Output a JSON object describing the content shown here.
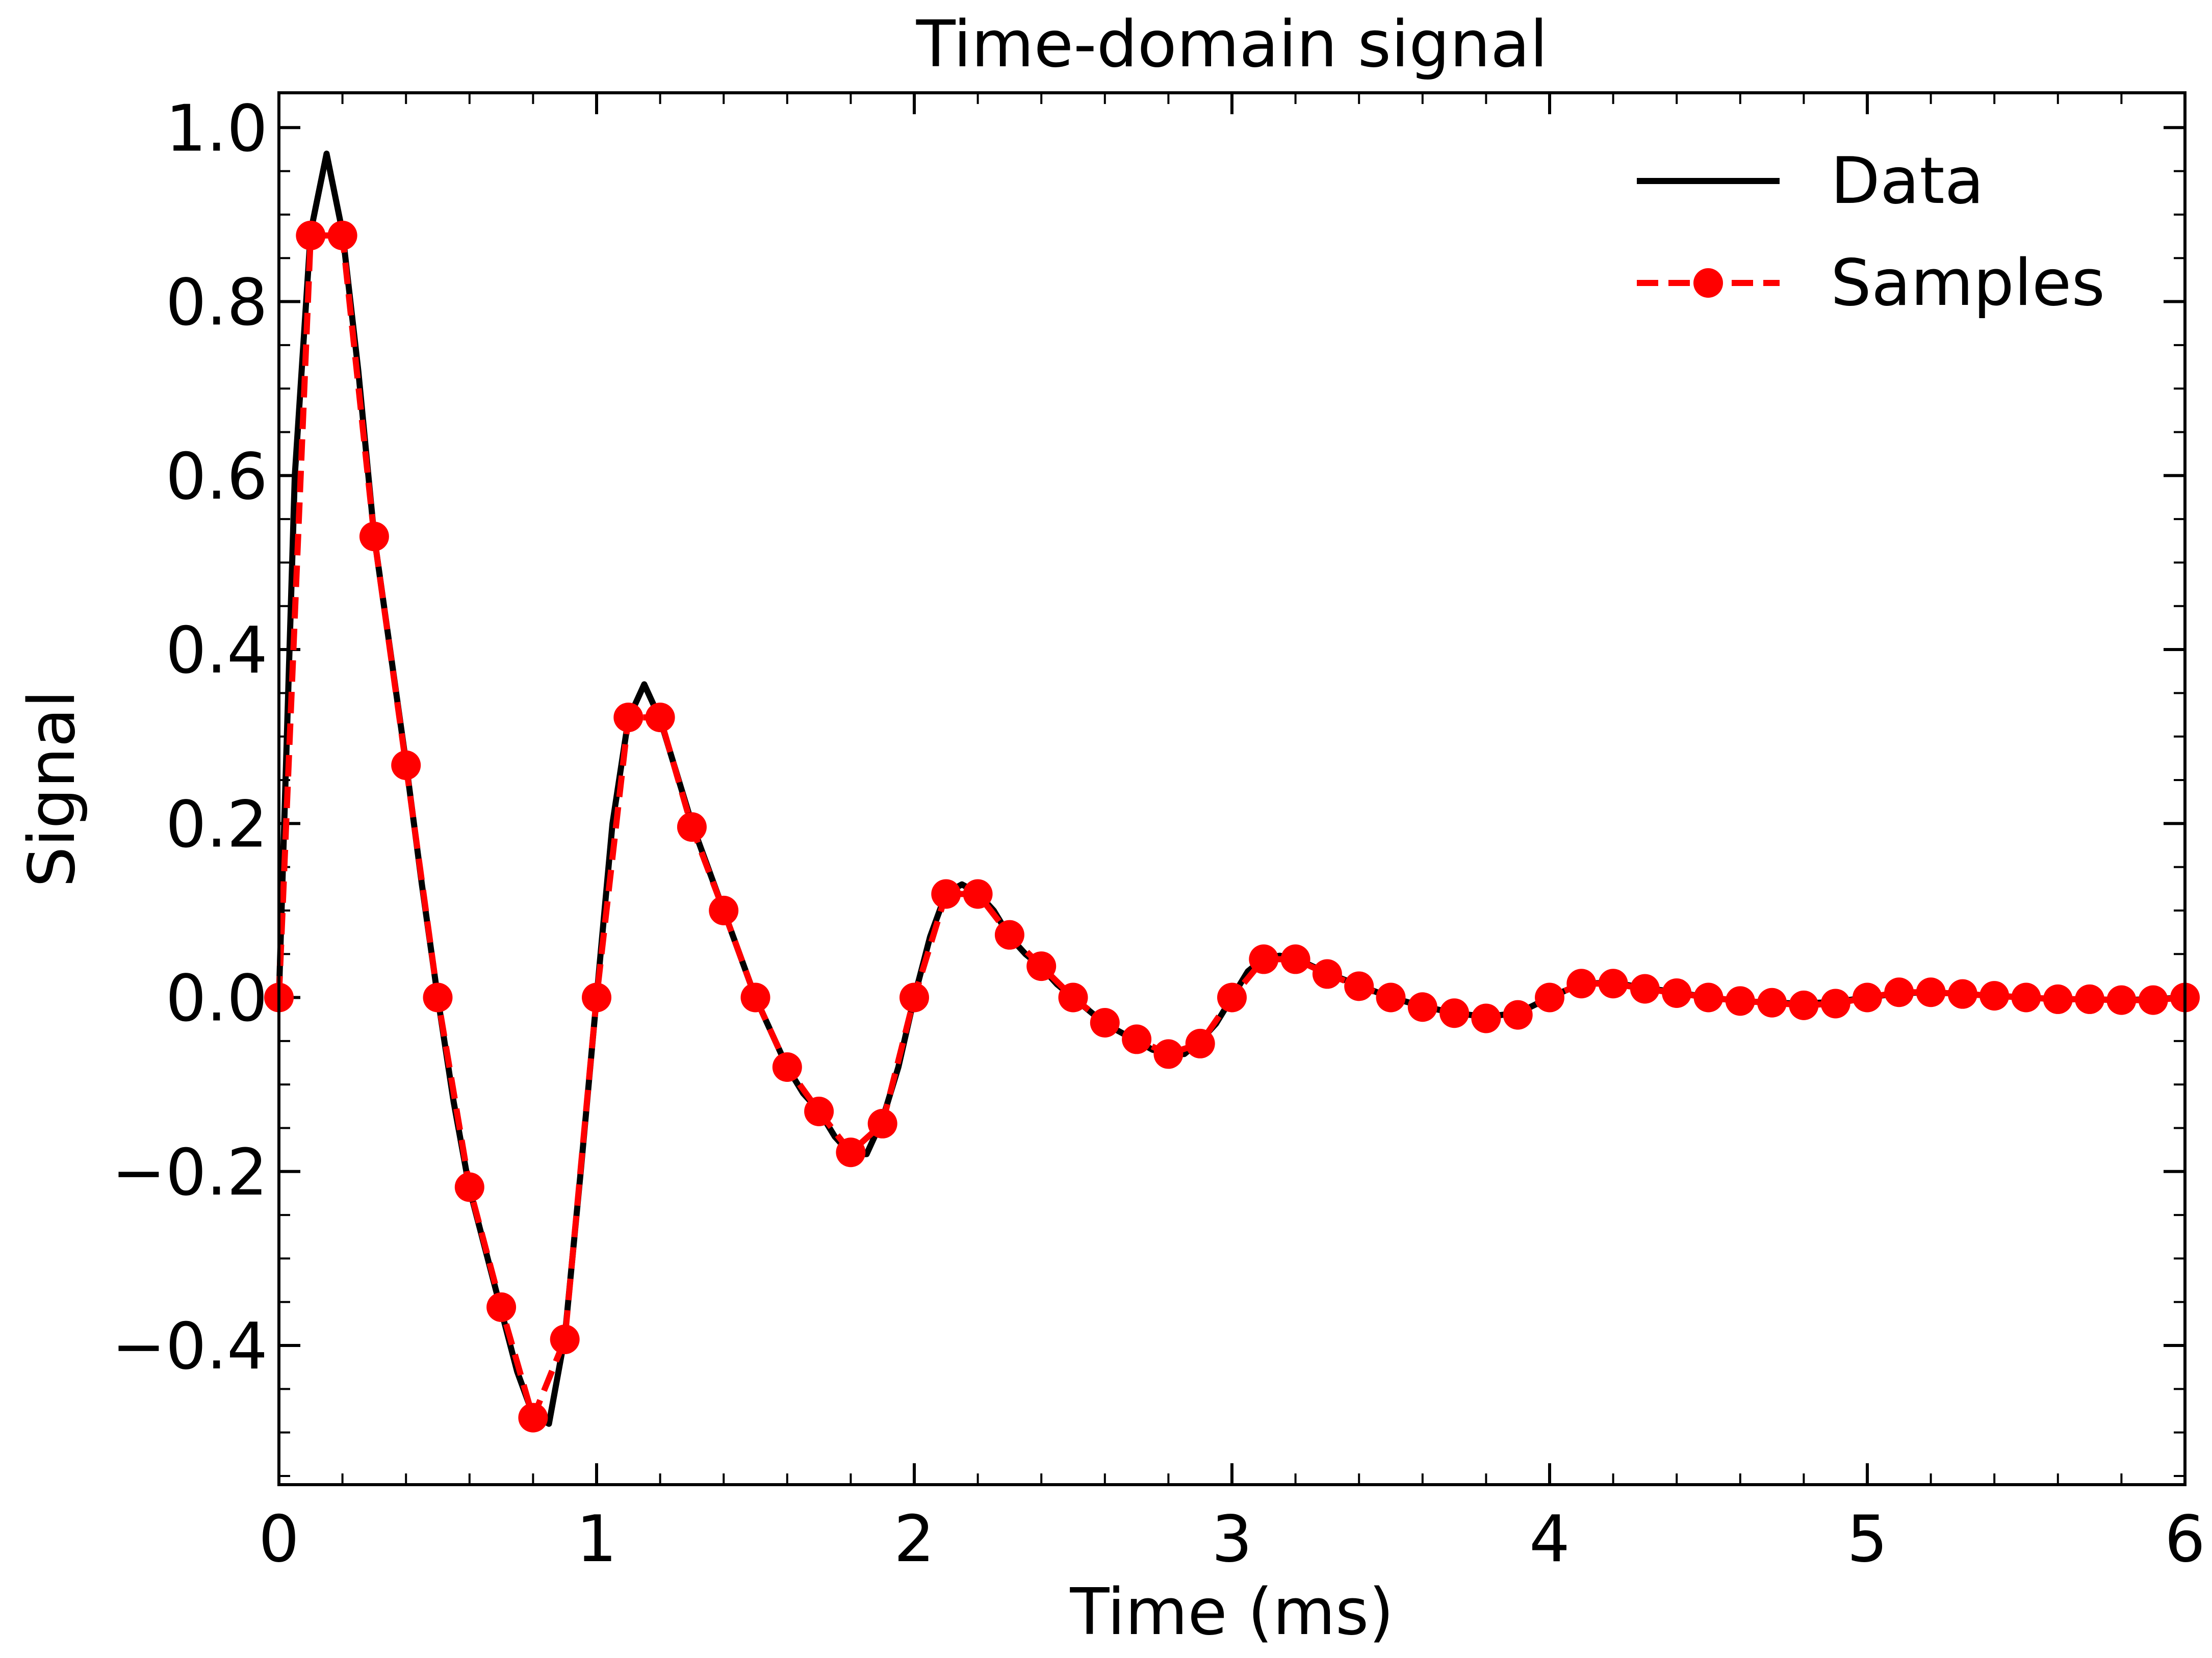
{
  "chart_data": {
    "type": "line",
    "title": "Time-domain signal",
    "xlabel": "Time (ms)",
    "ylabel": "Signal",
    "xlim": [
      0,
      6
    ],
    "ylim": [
      -0.56,
      1.04
    ],
    "xticks": [
      0,
      1,
      2,
      3,
      4,
      5,
      6
    ],
    "xtick_labels": [
      "0",
      "1",
      "2",
      "3",
      "4",
      "5",
      "6"
    ],
    "yticks": [
      -0.4,
      -0.2,
      0.0,
      0.2,
      0.4,
      0.6,
      0.8,
      1.0
    ],
    "ytick_labels": [
      "−0.4",
      "−0.2",
      "0.0",
      "0.2",
      "0.4",
      "0.6",
      "0.8",
      "1.0"
    ],
    "x_minor_step": 0.2,
    "y_minor_step": 0.05,
    "grid": false,
    "legend_position": "top-right",
    "series": [
      {
        "name": "Data",
        "style": "solid",
        "color": "#000000",
        "marker": "none",
        "x": [
          0,
          0.05,
          0.1,
          0.15,
          0.2,
          0.25,
          0.3,
          0.35,
          0.4,
          0.45,
          0.5,
          0.55,
          0.6,
          0.65,
          0.7,
          0.75,
          0.8,
          0.85,
          0.9,
          0.95,
          1.0,
          1.05,
          1.1,
          1.15,
          1.2,
          1.25,
          1.3,
          1.35,
          1.4,
          1.45,
          1.5,
          1.55,
          1.6,
          1.65,
          1.7,
          1.75,
          1.8,
          1.85,
          1.9,
          1.95,
          2.0,
          2.05,
          2.1,
          2.15,
          2.2,
          2.25,
          2.3,
          2.35,
          2.4,
          2.45,
          2.5,
          2.55,
          2.6,
          2.65,
          2.7,
          2.75,
          2.8,
          2.85,
          2.9,
          2.95,
          3.0,
          3.05,
          3.1,
          3.15,
          3.2,
          3.3,
          3.4,
          3.5,
          3.6,
          3.7,
          3.8,
          3.9,
          4.0,
          4.1,
          4.2,
          4.3,
          4.4,
          4.5,
          4.6,
          4.7,
          4.8,
          4.9,
          5.0,
          5.1,
          5.2,
          5.3,
          5.4,
          5.5,
          5.6,
          5.7,
          5.8,
          5.9,
          6.0
        ],
        "y": [
          0.0,
          0.6,
          0.88,
          0.97,
          0.88,
          0.72,
          0.53,
          0.4,
          0.27,
          0.13,
          0.0,
          -0.12,
          -0.22,
          -0.29,
          -0.36,
          -0.43,
          -0.48,
          -0.49,
          -0.39,
          -0.2,
          0.0,
          0.2,
          0.32,
          0.36,
          0.32,
          0.26,
          0.2,
          0.15,
          0.1,
          0.05,
          0.0,
          -0.04,
          -0.08,
          -0.11,
          -0.13,
          -0.16,
          -0.18,
          -0.18,
          -0.14,
          -0.08,
          0.0,
          0.07,
          0.12,
          0.13,
          0.12,
          0.1,
          0.07,
          0.05,
          0.035,
          0.015,
          0.0,
          -0.015,
          -0.03,
          -0.04,
          -0.05,
          -0.06,
          -0.065,
          -0.065,
          -0.05,
          -0.03,
          0.0,
          0.03,
          0.045,
          0.048,
          0.045,
          0.028,
          0.014,
          0.0,
          -0.01,
          -0.018,
          -0.022,
          -0.018,
          0.0,
          0.016,
          0.017,
          0.011,
          0.006,
          0.0,
          -0.004,
          -0.006,
          -0.007,
          -0.005,
          0.0,
          0.005,
          0.006,
          0.004,
          0.002,
          0.0,
          -0.002,
          -0.002,
          -0.003,
          -0.002,
          0.0
        ]
      },
      {
        "name": "Samples",
        "style": "dashed",
        "color": "#ff0000",
        "marker": "circle",
        "x": [
          0.0,
          0.1,
          0.2,
          0.3,
          0.4,
          0.5,
          0.6,
          0.7,
          0.8,
          0.9,
          1.0,
          1.1,
          1.2,
          1.3,
          1.4,
          1.5,
          1.6,
          1.7,
          1.8,
          1.9,
          2.0,
          2.1,
          2.2,
          2.3,
          2.4,
          2.5,
          2.6,
          2.7,
          2.8,
          2.9,
          3.0,
          3.1,
          3.2,
          3.3,
          3.4,
          3.5,
          3.6,
          3.7,
          3.8,
          3.9,
          4.0,
          4.1,
          4.2,
          4.3,
          4.4,
          4.5,
          4.6,
          4.7,
          4.8,
          4.9,
          5.0,
          5.1,
          5.2,
          5.3,
          5.4,
          5.5,
          5.6,
          5.7,
          5.8,
          5.9,
          6.0
        ],
        "y": [
          0.0,
          0.876,
          0.876,
          0.53,
          0.267,
          0.0,
          -0.218,
          -0.356,
          -0.483,
          -0.393,
          0.0,
          0.322,
          0.322,
          0.196,
          0.1,
          0.0,
          -0.08,
          -0.131,
          -0.178,
          -0.145,
          0.0,
          0.119,
          0.119,
          0.072,
          0.036,
          0.0,
          -0.029,
          -0.048,
          -0.065,
          -0.053,
          0.0,
          0.044,
          0.044,
          0.027,
          0.013,
          0.0,
          -0.011,
          -0.018,
          -0.024,
          -0.02,
          0.0,
          0.016,
          0.016,
          0.01,
          0.005,
          0.0,
          -0.004,
          -0.006,
          -0.009,
          -0.007,
          0.0,
          0.006,
          0.006,
          0.004,
          0.002,
          0.0,
          -0.002,
          -0.002,
          -0.003,
          -0.003,
          0.0
        ]
      }
    ]
  }
}
